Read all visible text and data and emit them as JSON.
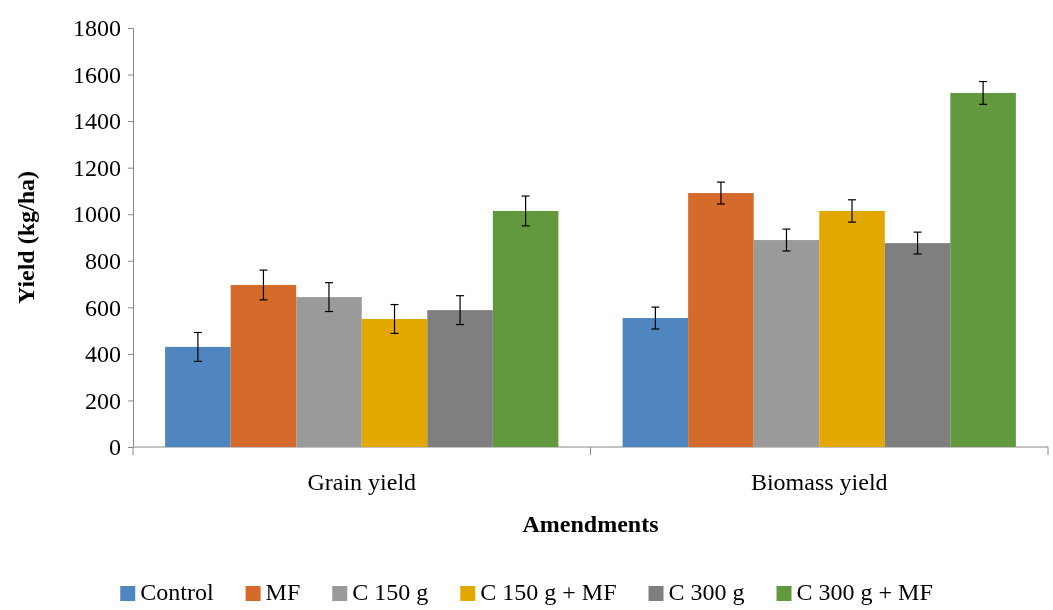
{
  "chart_data": {
    "type": "bar",
    "xlabel": "Amendments",
    "ylabel": "Yield (kg/ha)",
    "categories": [
      "Grain yield",
      "Biomass yield"
    ],
    "series": [
      {
        "name": "Control",
        "color": "#4f86c0",
        "values": [
          430,
          554
        ],
        "errors": [
          62,
          47
        ]
      },
      {
        "name": "MF",
        "color": "#d46b2b",
        "values": [
          696,
          1091
        ],
        "errors": [
          64,
          47
        ]
      },
      {
        "name": "C 150 g",
        "color": "#9a9a9a",
        "values": [
          644,
          889
        ],
        "errors": [
          62,
          47
        ]
      },
      {
        "name": "C 150 g + MF",
        "color": "#e3a800",
        "values": [
          550,
          1014
        ],
        "errors": [
          62,
          48
        ]
      },
      {
        "name": "C 300 g",
        "color": "#7f7f7f",
        "values": [
          588,
          876
        ],
        "errors": [
          62,
          47
        ]
      },
      {
        "name": "C 300 g + MF",
        "color": "#63993e",
        "values": [
          1014,
          1521
        ],
        "errors": [
          64,
          49
        ]
      }
    ],
    "ylim": [
      0,
      1800
    ],
    "yticks": [
      0,
      200,
      400,
      600,
      800,
      1000,
      1200,
      1400,
      1600,
      1800
    ],
    "grid": false,
    "legend": "bottom"
  }
}
